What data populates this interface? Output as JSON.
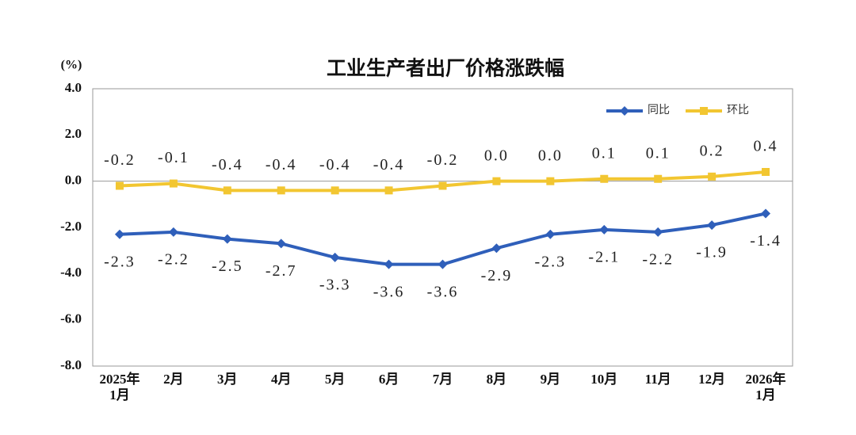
{
  "chart_data": {
    "type": "line",
    "title": "工业生产者出厂价格涨跌幅",
    "y_label": "(%)",
    "categories": [
      "2025年\n1月",
      "2月",
      "3月",
      "4月",
      "5月",
      "6月",
      "7月",
      "8月",
      "9月",
      "10月",
      "11月",
      "12月",
      "2026年\n1月"
    ],
    "series": [
      {
        "name": "同比",
        "color": "#2f5fba",
        "marker": "diamond",
        "values": [
          -2.3,
          -2.2,
          -2.5,
          -2.7,
          -3.3,
          -3.6,
          -3.6,
          -2.9,
          -2.3,
          -2.1,
          -2.2,
          -1.9,
          -1.4
        ],
        "value_labels": [
          "-2.3",
          "-2.2",
          "-2.5",
          "-2.7",
          "-3.3",
          "-3.6",
          "-3.6",
          "-2.9",
          "-2.3",
          "-2.1",
          "-2.2",
          "-1.9",
          "-1.4"
        ]
      },
      {
        "name": "环比",
        "color": "#f2c631",
        "marker": "square",
        "values": [
          -0.2,
          -0.1,
          -0.4,
          -0.4,
          -0.4,
          -0.4,
          -0.2,
          0,
          0,
          0.1,
          0.1,
          0.2,
          0.4
        ],
        "value_labels": [
          "-0.2",
          "-0.1",
          "-0.4",
          "-0.4",
          "-0.4",
          "-0.4",
          "-0.2",
          "0.0",
          "0.0",
          "0.1",
          "0.1",
          "0.2",
          "0.4"
        ]
      }
    ],
    "ylim": [
      -8,
      4
    ],
    "yticks": [
      {
        "value": -8,
        "label": "-8.0"
      },
      {
        "value": -6,
        "label": "-6.0"
      },
      {
        "value": -4,
        "label": "-4.0"
      },
      {
        "value": -2,
        "label": "-2.0"
      },
      {
        "value": 0,
        "label": "0.0"
      },
      {
        "value": 2,
        "label": "2.0"
      },
      {
        "value": 4,
        "label": "4.0"
      }
    ],
    "legend": "top-right"
  }
}
